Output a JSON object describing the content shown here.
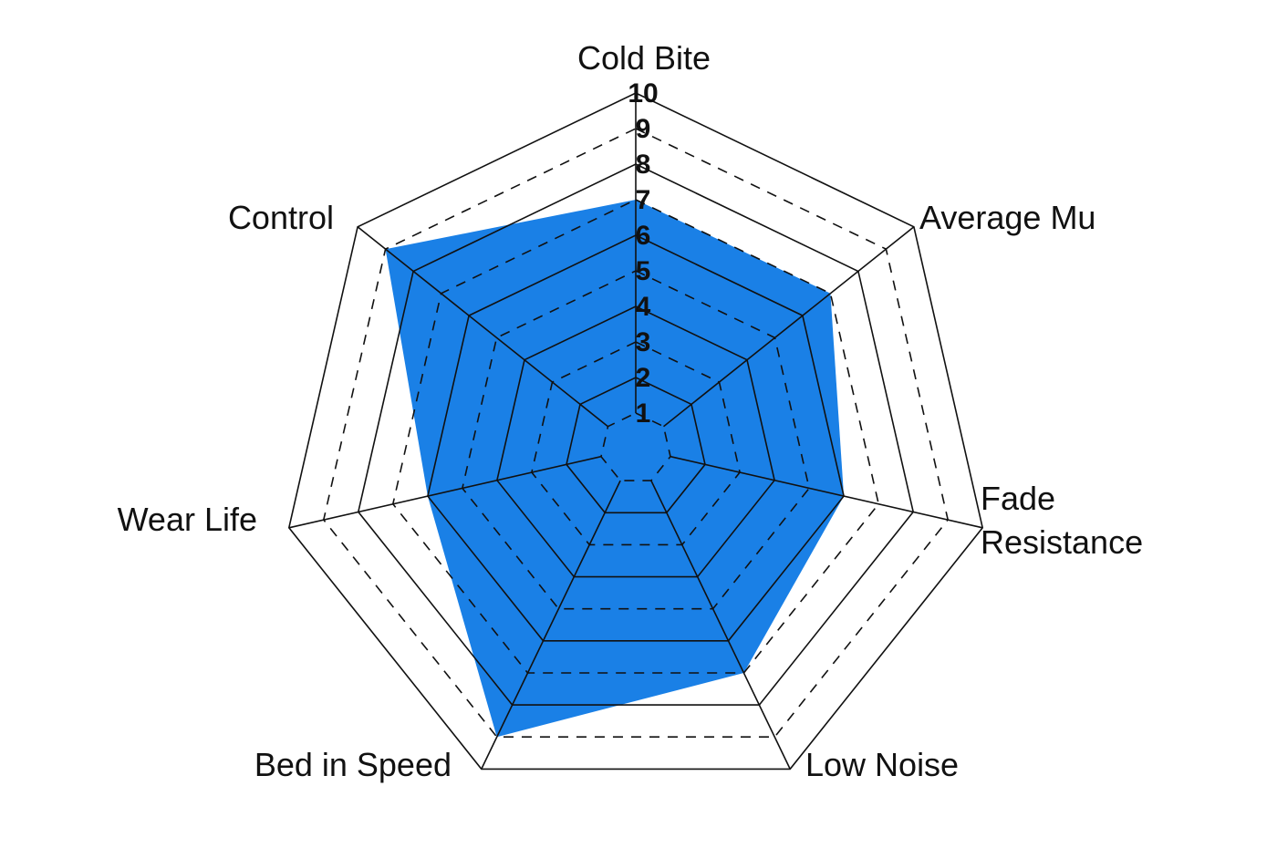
{
  "chart_data": {
    "type": "radar",
    "axes": [
      "Cold Bite",
      "Average Mu",
      "Fade Resistance",
      "Low Noise",
      "Bed in Speed",
      "Wear Life",
      "Control"
    ],
    "axis_label_lines": [
      [
        "Cold Bite"
      ],
      [
        "Average Mu"
      ],
      [
        "Fade",
        "Resistance"
      ],
      [
        "Low Noise"
      ],
      [
        "Bed in Speed"
      ],
      [
        "Wear Life"
      ],
      [
        "Control"
      ]
    ],
    "series": [
      {
        "values": [
          7,
          7,
          6,
          7,
          9,
          6,
          9
        ]
      }
    ],
    "range": [
      0,
      10
    ],
    "ticks": [
      "1",
      "2",
      "3",
      "4",
      "5",
      "6",
      "7",
      "8",
      "9",
      "10"
    ],
    "grid": "solid lines at even values, dashed lines at odd values",
    "colors": {
      "fill": "#1a80e6",
      "grid": "#111111",
      "text": "#111111"
    }
  }
}
